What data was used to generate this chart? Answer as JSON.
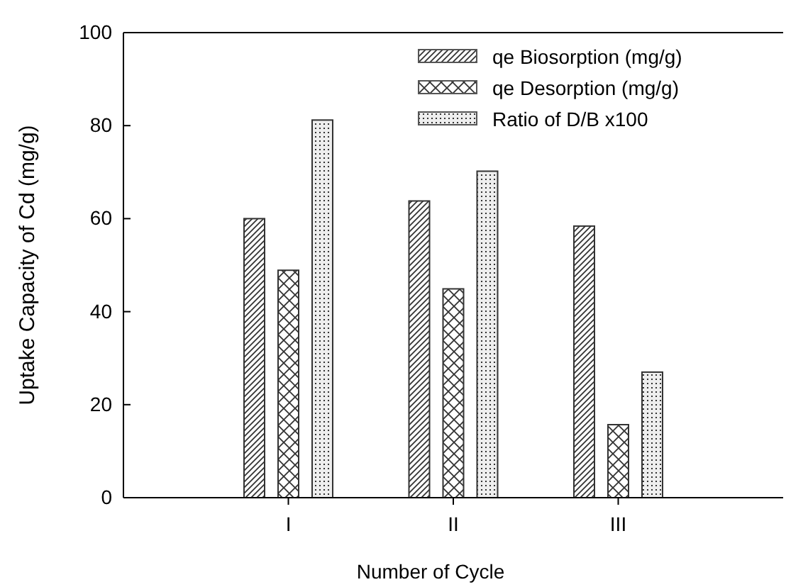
{
  "chart_data": {
    "type": "bar",
    "xlabel": "Number of Cycle",
    "ylabel": "Uptake Capacity of Cd (mg/g)",
    "categories": [
      "I",
      "II",
      "III"
    ],
    "series": [
      {
        "name": "qe Biosorption (mg/g)",
        "color": "#333333",
        "values": [
          60.0,
          63.8,
          58.4
        ]
      },
      {
        "name": "qe Desorption (mg/g)",
        "color": "#333333",
        "values": [
          48.9,
          44.9,
          15.7
        ]
      },
      {
        "name": "Ratio of D/B x100",
        "color": "#333333",
        "values": [
          81.2,
          70.2,
          27.0
        ]
      }
    ],
    "ylim": [
      0,
      100
    ],
    "yticks": [
      0,
      20,
      40,
      60,
      80,
      100
    ],
    "legend": "top right"
  }
}
